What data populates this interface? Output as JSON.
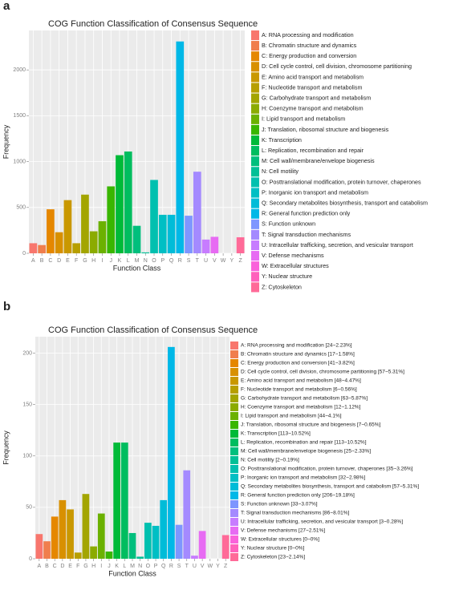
{
  "chart_data": [
    {
      "type": "bar",
      "panel": "a",
      "title": "COG Function Classification of Consensus Sequence",
      "xlabel": "Function Class",
      "ylabel": "Frequency",
      "categories": [
        "A",
        "B",
        "C",
        "D",
        "E",
        "F",
        "G",
        "H",
        "I",
        "J",
        "K",
        "L",
        "M",
        "N",
        "O",
        "P",
        "Q",
        "R",
        "S",
        "T",
        "U",
        "V",
        "W",
        "Y",
        "Z"
      ],
      "values": [
        110,
        90,
        480,
        230,
        580,
        110,
        640,
        240,
        350,
        730,
        1070,
        1110,
        300,
        10,
        800,
        420,
        420,
        2310,
        410,
        890,
        150,
        180,
        0,
        0,
        175
      ],
      "colors": [
        "#F8766D",
        "#F07E4D",
        "#E58700",
        "#D89000",
        "#C99800",
        "#B79F00",
        "#A3A500",
        "#8BAB00",
        "#6BB100",
        "#39B600",
        "#00BA38",
        "#00BD5F",
        "#00BF7D",
        "#00C097",
        "#00C0AF",
        "#00BFC4",
        "#00BCD8",
        "#00B8E7",
        "#7E96FF",
        "#A48AFF",
        "#C77CFF",
        "#E76BF3",
        "#FA62DB",
        "#FF62BC",
        "#FF6A98"
      ],
      "legend_labels": [
        "A: RNA processing and modification",
        "B: Chromatin structure and dynamics",
        "C: Energy production and conversion",
        "D: Cell cycle control, cell division, chromosome partitioning",
        "E: Amino acid transport and metabolism",
        "F: Nucleotide transport and metabolism",
        "G: Carbohydrate transport and metabolism",
        "H: Coenzyme transport and metabolism",
        "I: Lipid transport and metabolism",
        "J: Translation, ribosomal structure and biogenesis",
        "K: Transcription",
        "L: Replication, recombination and repair",
        "M: Cell wall/membrane/envelope biogenesis",
        "N: Cell motility",
        "O: Posttranslational modification, protein turnover, chaperones",
        "P: Inorganic ion transport and metabolism",
        "Q: Secondary metabolites biosynthesis, transport and catabolism",
        "R: General function prediction only",
        "S: Function unknown",
        "T: Signal transduction mechanisms",
        "U: Intracellular trafficking, secretion, and vesicular transport",
        "V: Defense mechanisms",
        "W: Extracellular structures",
        "Y: Nuclear structure",
        "Z: Cytoskeleton"
      ],
      "ylim": [
        0,
        2430
      ],
      "yticks": [
        0,
        500,
        1000,
        1500,
        2000
      ],
      "grid": true
    },
    {
      "type": "bar",
      "panel": "b",
      "title": "COG Function Classification of Consensus Sequence",
      "xlabel": "Function Class",
      "ylabel": "Frequency",
      "categories": [
        "A",
        "B",
        "C",
        "D",
        "E",
        "F",
        "G",
        "H",
        "I",
        "J",
        "K",
        "L",
        "M",
        "N",
        "O",
        "P",
        "Q",
        "R",
        "S",
        "T",
        "U",
        "V",
        "W",
        "Y",
        "Z"
      ],
      "values": [
        24,
        17,
        41,
        57,
        48,
        6,
        63,
        12,
        44,
        7,
        113,
        113,
        25,
        2,
        35,
        32,
        57,
        206,
        33,
        86,
        3,
        27,
        0,
        0,
        23
      ],
      "colors": [
        "#F8766D",
        "#F07E4D",
        "#E58700",
        "#D89000",
        "#C99800",
        "#B79F00",
        "#A3A500",
        "#8BAB00",
        "#6BB100",
        "#39B600",
        "#00BA38",
        "#00BD5F",
        "#00BF7D",
        "#00C097",
        "#00C0AF",
        "#00BFC4",
        "#00BCD8",
        "#00B8E7",
        "#7E96FF",
        "#A48AFF",
        "#C77CFF",
        "#E76BF3",
        "#FA62DB",
        "#FF62BC",
        "#FF6A98"
      ],
      "legend_labels": [
        "A: RNA processing and modification [24~2.23%]",
        "B: Chromatin structure and dynamics [17~1.58%]",
        "C: Energy production and conversion [41~3.82%]",
        "D: Cell cycle control, cell division, chromosome partitioning [57~5.31%]",
        "E: Amino acid transport and metabolism [48~4.47%]",
        "F: Nucleotide transport and metabolism [6~0.56%]",
        "G: Carbohydrate transport and metabolism [63~5.87%]",
        "H: Coenzyme transport and metabolism [12~1.12%]",
        "I: Lipid transport and metabolism [44~4.1%]",
        "J: Translation, ribosomal structure and biogenesis [7~0.65%]",
        "K: Transcription [113~10.52%]",
        "L: Replication, recombination and repair [113~10.52%]",
        "M: Cell wall/membrane/envelope biogenesis [25~2.33%]",
        "N: Cell motility [2~0.19%]",
        "O: Posttranslational modification, protein turnover, chaperones [35~3.26%]",
        "P: Inorganic ion transport and metabolism [32~2.98%]",
        "Q: Secondary metabolites biosynthesis, transport and catabolism [57~5.31%]",
        "R: General function prediction only [206~19.18%]",
        "S: Function unknown [33~3.07%]",
        "T: Signal transduction mechanisms [86~8.01%]",
        "U: Intracellular trafficking, secretion, and vesicular transport [3~0.28%]",
        "V: Defense mechanisms [27~2.51%]",
        "W: Extracellular structures [0~0%]",
        "Y: Nuclear structure [0~0%]",
        "Z: Cytoskeleton [23~2.14%]"
      ],
      "ylim": [
        0,
        216
      ],
      "yticks": [
        0,
        50,
        100,
        150,
        200
      ],
      "grid": true
    }
  ]
}
